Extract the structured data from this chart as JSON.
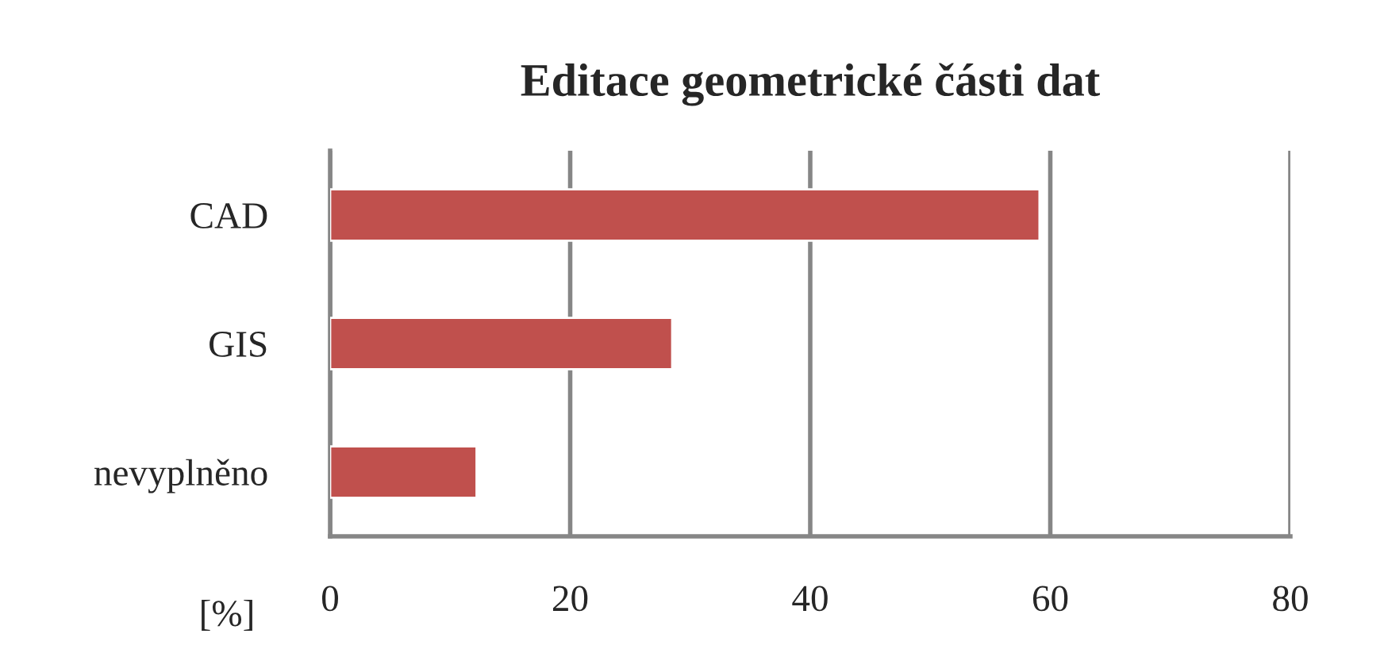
{
  "chart_data": {
    "type": "bar",
    "orientation": "horizontal",
    "title": "Editace geometrické části dat",
    "xlabel": "[%]",
    "categories": [
      "CAD",
      "GIS",
      "nevyplněno"
    ],
    "values": [
      59.1,
      28.5,
      12.2
    ],
    "color": "#c0504d",
    "xlim": [
      0,
      80
    ],
    "xticks": [
      0,
      20,
      40,
      60,
      80
    ],
    "grid": "x"
  }
}
